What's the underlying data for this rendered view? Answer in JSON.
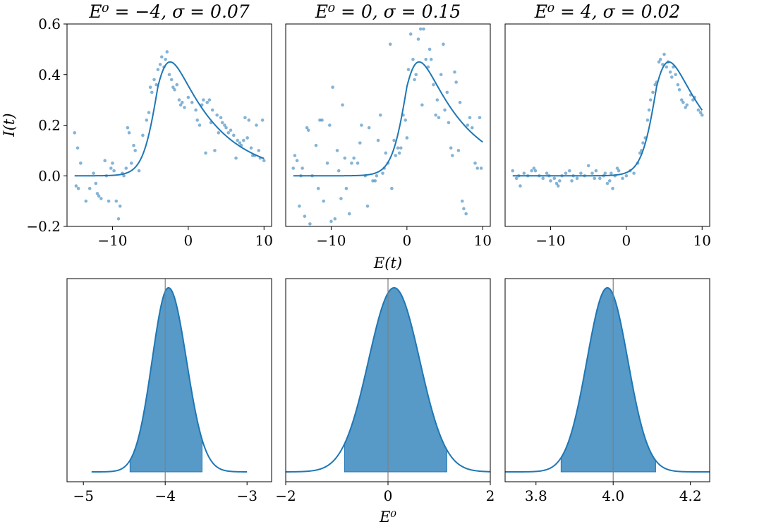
{
  "figure": {
    "shared_xlabel_top": "E(t)",
    "shared_ylabel_top": "I(t)",
    "shared_xlabel_bottom": "E⁰",
    "color": "#1f77b4",
    "fill_color": "#5799c7",
    "ref_line_color": "#808080"
  },
  "chart_data": [
    {
      "type": "scatter",
      "title": "E⁰ = −4, σ = 0.07",
      "E0": -4,
      "sigma": 0.07,
      "xlim": [
        -16,
        11
      ],
      "ylim": [
        -0.2,
        0.6
      ],
      "xticks": [
        -10,
        0,
        10
      ],
      "xtick_labels": [
        "−10",
        "0",
        "10"
      ],
      "yticks": [
        -0.2,
        0.0,
        0.2,
        0.4,
        0.6
      ],
      "ytick_labels": [
        "−0.2",
        "0.0",
        "0.2",
        "0.4",
        "0.6"
      ],
      "x_range": [
        -15,
        10
      ],
      "peak_height": 0.45,
      "rise_width": 1.0,
      "decay_scale": 6.0,
      "points": [
        [
          -15,
          0.17
        ],
        [
          -14.6,
          0.11
        ],
        [
          -14.8,
          -0.04
        ],
        [
          -14.5,
          -0.05
        ],
        [
          -14.2,
          0.05
        ],
        [
          -13.5,
          -0.1
        ],
        [
          -13,
          -0.05
        ],
        [
          -12.5,
          0.01
        ],
        [
          -12.2,
          -0.03
        ],
        [
          -12,
          -0.07
        ],
        [
          -11.8,
          -0.08
        ],
        [
          -11.5,
          -0.09
        ],
        [
          -11,
          0.06
        ],
        [
          -10.8,
          0.0
        ],
        [
          -10.5,
          -0.1
        ],
        [
          -10.2,
          0.03
        ],
        [
          -10,
          0.05
        ],
        [
          -9.8,
          0.02
        ],
        [
          -9.5,
          -0.1
        ],
        [
          -9.2,
          -0.17
        ],
        [
          -9,
          -0.12
        ],
        [
          -8.7,
          0.01
        ],
        [
          -8.5,
          0.0
        ],
        [
          -8.2,
          0.03
        ],
        [
          -8,
          0.19
        ],
        [
          -7.8,
          0.17
        ],
        [
          -7.5,
          0.05
        ],
        [
          -7.2,
          0.12
        ],
        [
          -7,
          0.1
        ],
        [
          -6.5,
          0.02
        ],
        [
          -6,
          0.16
        ],
        [
          -5.5,
          0.22
        ],
        [
          -5.2,
          0.25
        ],
        [
          -5,
          0.35
        ],
        [
          -4.8,
          0.33
        ],
        [
          -4.5,
          0.38
        ],
        [
          -4.2,
          0.36
        ],
        [
          -4,
          0.42
        ],
        [
          -3.7,
          0.44
        ],
        [
          -3.5,
          0.47
        ],
        [
          -3.2,
          0.43
        ],
        [
          -3,
          0.46
        ],
        [
          -2.8,
          0.49
        ],
        [
          -2.5,
          0.4
        ],
        [
          -2.2,
          0.38
        ],
        [
          -2,
          0.35
        ],
        [
          -1.8,
          0.34
        ],
        [
          -1.5,
          0.36
        ],
        [
          -1.2,
          0.3
        ],
        [
          -1,
          0.28
        ],
        [
          -0.8,
          0.29
        ],
        [
          -0.5,
          0.27
        ],
        [
          0,
          0.31
        ],
        [
          0.5,
          0.29
        ],
        [
          1,
          0.26
        ],
        [
          1.2,
          0.22
        ],
        [
          1.5,
          0.2
        ],
        [
          1.8,
          0.28
        ],
        [
          2,
          0.3
        ],
        [
          2.3,
          0.09
        ],
        [
          2.5,
          0.29
        ],
        [
          2.8,
          0.3
        ],
        [
          3,
          0.21
        ],
        [
          3.2,
          0.26
        ],
        [
          3.5,
          0.1
        ],
        [
          3.8,
          0.24
        ],
        [
          4,
          0.17
        ],
        [
          4.3,
          0.23
        ],
        [
          4.5,
          0.21
        ],
        [
          4.8,
          0.2
        ],
        [
          5,
          0.19
        ],
        [
          5.3,
          0.17
        ],
        [
          5.6,
          0.18
        ],
        [
          6,
          0.16
        ],
        [
          6.3,
          0.07
        ],
        [
          6.5,
          0.14
        ],
        [
          6.8,
          0.13
        ],
        [
          7,
          0.12
        ],
        [
          7.3,
          0.14
        ],
        [
          7.5,
          0.23
        ],
        [
          7.8,
          0.15
        ],
        [
          8,
          0.22
        ],
        [
          8.3,
          0.11
        ],
        [
          8.5,
          0.08
        ],
        [
          8.8,
          0.08
        ],
        [
          9,
          0.2
        ],
        [
          9.3,
          0.1
        ],
        [
          9.5,
          0.07
        ],
        [
          9.8,
          0.22
        ],
        [
          10,
          0.06
        ]
      ]
    },
    {
      "type": "scatter",
      "title": "E⁰ = 0, σ = 0.15",
      "E0": 0,
      "sigma": 0.15,
      "xlim": [
        -16,
        11
      ],
      "ylim": [
        -0.2,
        0.6
      ],
      "xticks": [
        -10,
        0,
        10
      ],
      "xtick_labels": [
        "−10",
        "0",
        "10"
      ],
      "x_range": [
        -15,
        10
      ],
      "peak_height": 0.45,
      "rise_width": 1.0,
      "decay_scale": 6.0,
      "points": [
        [
          -15,
          0.03
        ],
        [
          -14.8,
          0.08
        ],
        [
          -14.5,
          0.06
        ],
        [
          -14.2,
          -0.12
        ],
        [
          -14,
          0.0
        ],
        [
          -13.8,
          0.03
        ],
        [
          -13.5,
          -0.16
        ],
        [
          -13.2,
          0.19
        ],
        [
          -13,
          0.18
        ],
        [
          -12.8,
          -0.19
        ],
        [
          -12.5,
          0.0
        ],
        [
          -12,
          0.12
        ],
        [
          -11.7,
          -0.05
        ],
        [
          -11.5,
          0.22
        ],
        [
          -11.2,
          0.22
        ],
        [
          -11,
          -0.1
        ],
        [
          -10.5,
          0.05
        ],
        [
          -10.2,
          0.2
        ],
        [
          -10,
          -0.18
        ],
        [
          -9.8,
          0.35
        ],
        [
          -9.5,
          -0.17
        ],
        [
          -9.2,
          0.1
        ],
        [
          -9,
          0.02
        ],
        [
          -8.7,
          -0.09
        ],
        [
          -8.5,
          0.28
        ],
        [
          -8.2,
          0.07
        ],
        [
          -8,
          -0.05
        ],
        [
          -7.6,
          -0.15
        ],
        [
          -7.3,
          0.05
        ],
        [
          -7,
          0.07
        ],
        [
          -6.5,
          0.05
        ],
        [
          -6.2,
          0.13
        ],
        [
          -6,
          0.2
        ],
        [
          -5.5,
          0.0
        ],
        [
          -5.2,
          -0.12
        ],
        [
          -5,
          0.19
        ],
        [
          -4.5,
          -0.02
        ],
        [
          -4.2,
          -0.02
        ],
        [
          -4,
          0.0
        ],
        [
          -3.8,
          0.14
        ],
        [
          -3.5,
          0.24
        ],
        [
          -3.2,
          0.01
        ],
        [
          -3,
          0.03
        ],
        [
          -2.8,
          0.09
        ],
        [
          -2.5,
          0.05
        ],
        [
          -2.2,
          0.52
        ],
        [
          -2,
          -0.05
        ],
        [
          -1.7,
          0.14
        ],
        [
          -1.5,
          0.08
        ],
        [
          -1.2,
          0.11
        ],
        [
          -1,
          0.09
        ],
        [
          -0.8,
          0.11
        ],
        [
          -0.5,
          0.24
        ],
        [
          -0.2,
          0.22
        ],
        [
          0,
          0.15
        ],
        [
          0.2,
          0.42
        ],
        [
          0.5,
          0.56
        ],
        [
          0.8,
          0.46
        ],
        [
          1,
          0.38
        ],
        [
          1.2,
          0.4
        ],
        [
          1.5,
          0.54
        ],
        [
          1.8,
          0.58
        ],
        [
          2,
          0.28
        ],
        [
          2.2,
          0.58
        ],
        [
          2.5,
          0.46
        ],
        [
          2.8,
          0.43
        ],
        [
          3,
          0.5
        ],
        [
          3.2,
          0.46
        ],
        [
          3.5,
          0.36
        ],
        [
          3.8,
          0.24
        ],
        [
          4,
          0.3
        ],
        [
          4.2,
          0.23
        ],
        [
          4.5,
          0.4
        ],
        [
          4.8,
          0.52
        ],
        [
          5,
          0.26
        ],
        [
          5.3,
          0.33
        ],
        [
          5.5,
          0.21
        ],
        [
          5.8,
          0.11
        ],
        [
          6,
          0.08
        ],
        [
          6.3,
          0.41
        ],
        [
          6.5,
          0.37
        ],
        [
          6.8,
          0.1
        ],
        [
          7,
          0.29
        ],
        [
          7.3,
          -0.1
        ],
        [
          7.5,
          -0.13
        ],
        [
          7.8,
          -0.15
        ],
        [
          8,
          0.2
        ],
        [
          8.3,
          0.23
        ],
        [
          8.6,
          0.19
        ],
        [
          9,
          0.05
        ],
        [
          9.3,
          0.03
        ],
        [
          9.6,
          0.23
        ],
        [
          9.8,
          0.03
        ]
      ]
    },
    {
      "type": "scatter",
      "title": "E⁰ = 4, σ = 0.02",
      "E0": 4,
      "sigma": 0.02,
      "xlim": [
        -16,
        11
      ],
      "ylim": [
        -0.2,
        0.6
      ],
      "xticks": [
        -10,
        0,
        10
      ],
      "xtick_labels": [
        "−10",
        "0",
        "10"
      ],
      "x_range": [
        -15,
        10
      ],
      "peak_height": 0.45,
      "rise_width": 1.0,
      "decay_scale": 6.0,
      "points": [
        [
          -15,
          0.02
        ],
        [
          -14.5,
          -0.01
        ],
        [
          -14.2,
          0.0
        ],
        [
          -14,
          -0.04
        ],
        [
          -13.5,
          0.01
        ],
        [
          -13,
          0.0
        ],
        [
          -12.5,
          0.02
        ],
        [
          -12.2,
          0.03
        ],
        [
          -12,
          0.02
        ],
        [
          -11.5,
          0.0
        ],
        [
          -11,
          -0.01
        ],
        [
          -10.5,
          0.01
        ],
        [
          -10.2,
          0.0
        ],
        [
          -10,
          -0.02
        ],
        [
          -9.5,
          -0.01
        ],
        [
          -9.2,
          -0.03
        ],
        [
          -9,
          -0.04
        ],
        [
          -8.8,
          -0.02
        ],
        [
          -8.5,
          0.0
        ],
        [
          -8,
          0.01
        ],
        [
          -7.5,
          0.02
        ],
        [
          -7.2,
          -0.02
        ],
        [
          -7,
          0.0
        ],
        [
          -6.5,
          -0.01
        ],
        [
          -6,
          0.01
        ],
        [
          -5.5,
          0.0
        ],
        [
          -5,
          0.04
        ],
        [
          -4.5,
          0.01
        ],
        [
          -4.2,
          -0.01
        ],
        [
          -4,
          0.02
        ],
        [
          -3.5,
          -0.01
        ],
        [
          -3,
          0.0
        ],
        [
          -2.8,
          0.01
        ],
        [
          -2.5,
          -0.03
        ],
        [
          -2.2,
          -0.02
        ],
        [
          -2,
          0.01
        ],
        [
          -1.8,
          -0.05
        ],
        [
          -1.5,
          0.0
        ],
        [
          -1.2,
          0.03
        ],
        [
          -1,
          0.02
        ],
        [
          -0.5,
          -0.01
        ],
        [
          0,
          0.0
        ],
        [
          0.5,
          0.02
        ],
        [
          1,
          0.01
        ],
        [
          1.5,
          0.05
        ],
        [
          1.8,
          0.09
        ],
        [
          2,
          0.1
        ],
        [
          2.2,
          0.13
        ],
        [
          2.5,
          0.15
        ],
        [
          2.8,
          0.22
        ],
        [
          3,
          0.26
        ],
        [
          3.2,
          0.3
        ],
        [
          3.5,
          0.33
        ],
        [
          3.8,
          0.36
        ],
        [
          4,
          0.37
        ],
        [
          4.3,
          0.45
        ],
        [
          4.5,
          0.46
        ],
        [
          4.8,
          0.44
        ],
        [
          5,
          0.48
        ],
        [
          5.3,
          0.43
        ],
        [
          5.5,
          0.45
        ],
        [
          5.8,
          0.41
        ],
        [
          6,
          0.39
        ],
        [
          6.2,
          0.43
        ],
        [
          6.5,
          0.4
        ],
        [
          6.8,
          0.36
        ],
        [
          7,
          0.34
        ],
        [
          7.3,
          0.3
        ],
        [
          7.5,
          0.29
        ],
        [
          7.8,
          0.27
        ],
        [
          8,
          0.28
        ],
        [
          8.5,
          0.32
        ],
        [
          8.8,
          0.3
        ],
        [
          9,
          0.31
        ],
        [
          9.5,
          0.26
        ],
        [
          9.8,
          0.25
        ],
        [
          10,
          0.24
        ]
      ]
    },
    {
      "type": "area",
      "xlim": [
        -5.2,
        -2.7
      ],
      "xticks": [
        -5,
        -4,
        -3
      ],
      "xtick_labels": [
        "−5",
        "−4",
        "−3"
      ],
      "true_value": -4,
      "density_range": [
        -4.9,
        -3.0
      ],
      "mode": -3.96,
      "spread_left": 0.2,
      "spread_right": 0.22,
      "tail_floor": 0.03,
      "fill_range": [
        -4.43,
        -3.55
      ]
    },
    {
      "type": "area",
      "xlim": [
        -2,
        2
      ],
      "xticks": [
        -2,
        0,
        2
      ],
      "xtick_labels": [
        "−2",
        "0",
        "2"
      ],
      "true_value": 0,
      "density_range": [
        -2,
        2
      ],
      "mode": 0.12,
      "spread_left": 0.5,
      "spread_right": 0.5,
      "tail_floor": 0.0,
      "fill_range": [
        -0.85,
        1.15
      ]
    },
    {
      "type": "area",
      "xlim": [
        3.72,
        4.25
      ],
      "xticks": [
        3.8,
        4.0,
        4.2
      ],
      "xtick_labels": [
        "3.8",
        "4.0",
        "4.2"
      ],
      "true_value": 4.0,
      "density_range": [
        3.72,
        4.25
      ],
      "mode": 3.985,
      "spread_left": 0.053,
      "spread_right": 0.053,
      "tail_floor": 0.0,
      "fill_range": [
        3.865,
        4.11
      ]
    }
  ]
}
